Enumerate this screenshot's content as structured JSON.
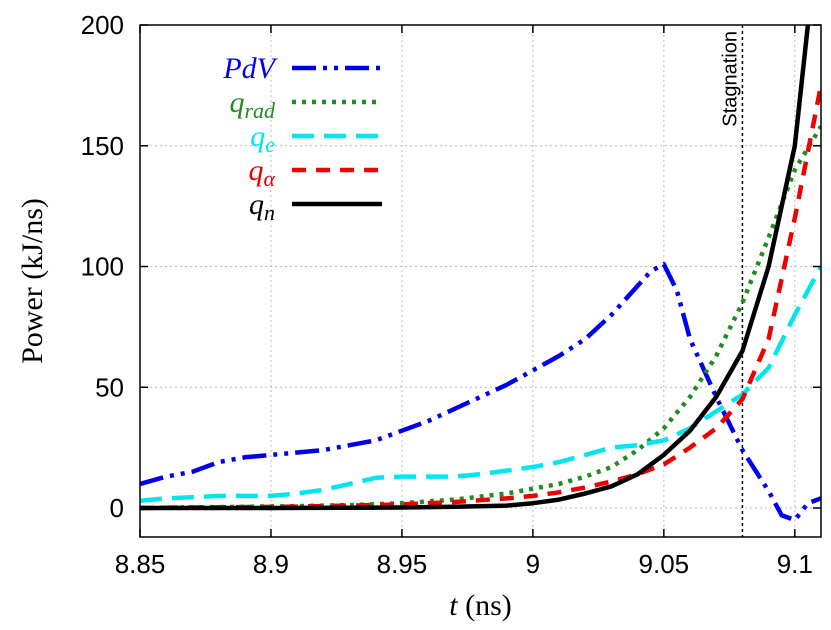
{
  "chart_data": {
    "type": "line",
    "title": "",
    "xlabel": {
      "var": "t",
      "unit": " (ns)"
    },
    "ylabel": "Power (kJ/ns)",
    "xlim": [
      8.85,
      9.11
    ],
    "ylim": [
      -12,
      200
    ],
    "xticks": [
      8.85,
      8.9,
      8.95,
      9.0,
      9.05,
      9.1
    ],
    "xtick_labels": [
      "8.85",
      "8.9",
      "8.95",
      "9",
      "9.05",
      "9.1"
    ],
    "yticks": [
      0,
      50,
      100,
      150,
      200
    ],
    "ytick_labels": [
      "0",
      "50",
      "100",
      "150",
      "200"
    ],
    "grid": true,
    "legend_position": "top-left",
    "annotation": {
      "label": "Stagnation",
      "x": 9.08
    },
    "series": [
      {
        "name": "PdV",
        "base": "PdV",
        "sub": "",
        "color": "#0000ee",
        "dash": "24,7,4,7,4,7",
        "x": [
          8.85,
          8.86,
          8.87,
          8.88,
          8.89,
          8.9,
          8.91,
          8.92,
          8.93,
          8.94,
          8.95,
          8.96,
          8.97,
          8.98,
          8.99,
          9.0,
          9.01,
          9.02,
          9.03,
          9.04,
          9.045,
          9.05,
          9.055,
          9.06,
          9.07,
          9.08,
          9.09,
          9.095,
          9.1,
          9.105,
          9.11
        ],
        "values": [
          10,
          13,
          15,
          19,
          21,
          22,
          23,
          24,
          26,
          28,
          32,
          36,
          41,
          46,
          51,
          57,
          63,
          70,
          80,
          92,
          98,
          101,
          90,
          70,
          46,
          24,
          7,
          -3,
          -5,
          2,
          4
        ]
      },
      {
        "name": "q_rad",
        "base": "q",
        "sub": "rad",
        "color": "#228b22",
        "dash": "4,6",
        "x": [
          8.85,
          8.87,
          8.89,
          8.91,
          8.93,
          8.95,
          8.97,
          8.99,
          9.0,
          9.01,
          9.02,
          9.03,
          9.04,
          9.05,
          9.06,
          9.07,
          9.08,
          9.09,
          9.1,
          9.11
        ],
        "values": [
          0,
          0.3,
          0.5,
          0.8,
          1.2,
          2,
          3.5,
          6,
          8,
          10,
          13,
          17,
          24,
          33,
          46,
          63,
          85,
          112,
          140,
          158
        ]
      },
      {
        "name": "q_e",
        "base": "q",
        "sub": "e",
        "color": "#00e5ee",
        "dash": "22,10",
        "x": [
          8.85,
          8.86,
          8.87,
          8.88,
          8.89,
          8.9,
          8.91,
          8.92,
          8.93,
          8.94,
          8.95,
          8.96,
          8.97,
          8.98,
          8.99,
          9.0,
          9.01,
          9.02,
          9.03,
          9.04,
          9.05,
          9.06,
          9.07,
          9.08,
          9.09,
          9.1,
          9.11
        ],
        "values": [
          3,
          4,
          4.5,
          5,
          5,
          5,
          6,
          7.5,
          10,
          12.5,
          13,
          13,
          13,
          14,
          15.5,
          17,
          19,
          22,
          25,
          26,
          28,
          33,
          40,
          47,
          58,
          80,
          100
        ]
      },
      {
        "name": "q_alpha",
        "base": "q",
        "sub": "α",
        "color": "#ee0000",
        "dash": "14,10",
        "x": [
          8.85,
          8.87,
          8.89,
          8.91,
          8.93,
          8.95,
          8.97,
          8.99,
          9.0,
          9.01,
          9.02,
          9.03,
          9.04,
          9.05,
          9.06,
          9.07,
          9.08,
          9.09,
          9.1,
          9.11
        ],
        "values": [
          0,
          0.2,
          0.4,
          0.6,
          1,
          1.5,
          2.5,
          4,
          5,
          6.5,
          8.5,
          11,
          14,
          18,
          25,
          33,
          45,
          70,
          120,
          175
        ]
      },
      {
        "name": "q_n",
        "base": "q",
        "sub": "n",
        "color": "#000000",
        "dash": "",
        "x": [
          8.85,
          8.9,
          8.95,
          8.97,
          8.99,
          9.0,
          9.01,
          9.02,
          9.03,
          9.04,
          9.05,
          9.06,
          9.07,
          9.08,
          9.09,
          9.1,
          9.105
        ],
        "values": [
          0,
          0,
          0.2,
          0.5,
          1,
          2,
          3.5,
          6,
          9,
          14,
          22,
          32,
          46,
          65,
          100,
          150,
          200
        ]
      }
    ]
  }
}
